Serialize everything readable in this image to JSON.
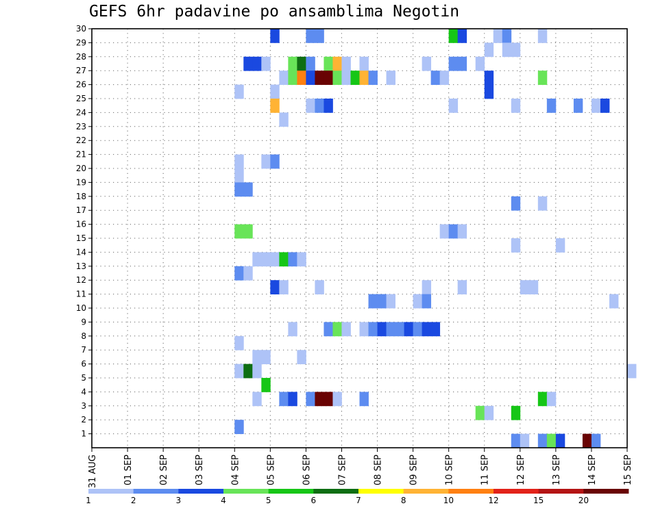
{
  "chart_data": {
    "type": "heatmap",
    "title": "GEFS 6hr padavine po ansamblima Negotin",
    "xlabel": "",
    "ylabel": "",
    "x_ticks": [
      "31 AUG",
      "01 SEP",
      "02 SEP",
      "03 SEP",
      "04 SEP",
      "05 SEP",
      "06 SEP",
      "07 SEP",
      "08 SEP",
      "09 SEP",
      "10 SEP",
      "11 SEP",
      "12 SEP",
      "13 SEP",
      "14 SEP",
      "15 SEP"
    ],
    "y_ticks": [
      1,
      2,
      3,
      4,
      5,
      6,
      7,
      8,
      9,
      10,
      11,
      12,
      13,
      14,
      15,
      16,
      17,
      18,
      19,
      20,
      21,
      22,
      23,
      24,
      25,
      26,
      27,
      28,
      29,
      30
    ],
    "xlim_days": [
      0,
      15
    ],
    "ylim": [
      0,
      30
    ],
    "steps_per_day": 4,
    "grid": true,
    "legend": {
      "position": "bottom",
      "ticks": [
        "1",
        "2",
        "3",
        "4",
        "5",
        "6",
        "7",
        "8",
        "10",
        "12",
        "15",
        "20"
      ],
      "colors": [
        "#aec3f7",
        "#5d8cf0",
        "#1a49e0",
        "#68e458",
        "#16c616",
        "#0e6e13",
        "#ffff00",
        "#ffb334",
        "#ff8011",
        "#e22219",
        "#b41414",
        "#690303"
      ]
    },
    "cells": [
      {
        "m": 30,
        "t": 20,
        "c": 2
      },
      {
        "m": 30,
        "t": 24,
        "c": 1
      },
      {
        "m": 30,
        "t": 25,
        "c": 1
      },
      {
        "m": 30,
        "t": 40,
        "c": 4
      },
      {
        "m": 30,
        "t": 41,
        "c": 2
      },
      {
        "m": 30,
        "t": 45,
        "c": 0
      },
      {
        "m": 30,
        "t": 46,
        "c": 1
      },
      {
        "m": 30,
        "t": 50,
        "c": 0
      },
      {
        "m": 29,
        "t": 44,
        "c": 0
      },
      {
        "m": 29,
        "t": 46,
        "c": 0
      },
      {
        "m": 29,
        "t": 47,
        "c": 0
      },
      {
        "m": 28,
        "t": 17,
        "c": 2
      },
      {
        "m": 28,
        "t": 18,
        "c": 2
      },
      {
        "m": 28,
        "t": 19,
        "c": 0
      },
      {
        "m": 28,
        "t": 22,
        "c": 3
      },
      {
        "m": 28,
        "t": 23,
        "c": 5
      },
      {
        "m": 28,
        "t": 24,
        "c": 1
      },
      {
        "m": 28,
        "t": 26,
        "c": 3
      },
      {
        "m": 28,
        "t": 27,
        "c": 7
      },
      {
        "m": 28,
        "t": 28,
        "c": 0
      },
      {
        "m": 28,
        "t": 30,
        "c": 0
      },
      {
        "m": 28,
        "t": 37,
        "c": 0
      },
      {
        "m": 28,
        "t": 40,
        "c": 1
      },
      {
        "m": 28,
        "t": 41,
        "c": 1
      },
      {
        "m": 28,
        "t": 43,
        "c": 0
      },
      {
        "m": 27,
        "t": 21,
        "c": 0
      },
      {
        "m": 27,
        "t": 22,
        "c": 3
      },
      {
        "m": 27,
        "t": 23,
        "c": 8
      },
      {
        "m": 27,
        "t": 24,
        "c": 2
      },
      {
        "m": 27,
        "t": 25,
        "c": 11
      },
      {
        "m": 27,
        "t": 26,
        "c": 11
      },
      {
        "m": 27,
        "t": 27,
        "c": 3
      },
      {
        "m": 27,
        "t": 28,
        "c": 0
      },
      {
        "m": 27,
        "t": 29,
        "c": 4
      },
      {
        "m": 27,
        "t": 30,
        "c": 7
      },
      {
        "m": 27,
        "t": 31,
        "c": 1
      },
      {
        "m": 27,
        "t": 33,
        "c": 0
      },
      {
        "m": 27,
        "t": 38,
        "c": 1
      },
      {
        "m": 27,
        "t": 39,
        "c": 0
      },
      {
        "m": 27,
        "t": 44,
        "c": 2
      },
      {
        "m": 27,
        "t": 50,
        "c": 3
      },
      {
        "m": 26,
        "t": 16,
        "c": 0
      },
      {
        "m": 26,
        "t": 20,
        "c": 0
      },
      {
        "m": 26,
        "t": 44,
        "c": 2
      },
      {
        "m": 25,
        "t": 20,
        "c": 7
      },
      {
        "m": 25,
        "t": 24,
        "c": 0
      },
      {
        "m": 25,
        "t": 25,
        "c": 1
      },
      {
        "m": 25,
        "t": 26,
        "c": 2
      },
      {
        "m": 25,
        "t": 40,
        "c": 0
      },
      {
        "m": 25,
        "t": 47,
        "c": 0
      },
      {
        "m": 25,
        "t": 51,
        "c": 1
      },
      {
        "m": 25,
        "t": 54,
        "c": 1
      },
      {
        "m": 25,
        "t": 56,
        "c": 0
      },
      {
        "m": 25,
        "t": 57,
        "c": 2
      },
      {
        "m": 24,
        "t": 21,
        "c": 0
      },
      {
        "m": 21,
        "t": 16,
        "c": 0
      },
      {
        "m": 21,
        "t": 19,
        "c": 0
      },
      {
        "m": 21,
        "t": 20,
        "c": 1
      },
      {
        "m": 20,
        "t": 16,
        "c": 0
      },
      {
        "m": 19,
        "t": 16,
        "c": 1
      },
      {
        "m": 19,
        "t": 17,
        "c": 1
      },
      {
        "m": 18,
        "t": 47,
        "c": 1
      },
      {
        "m": 18,
        "t": 50,
        "c": 0
      },
      {
        "m": 16,
        "t": 16,
        "c": 3
      },
      {
        "m": 16,
        "t": 17,
        "c": 3
      },
      {
        "m": 16,
        "t": 39,
        "c": 0
      },
      {
        "m": 16,
        "t": 40,
        "c": 1
      },
      {
        "m": 16,
        "t": 41,
        "c": 0
      },
      {
        "m": 15,
        "t": 47,
        "c": 0
      },
      {
        "m": 15,
        "t": 52,
        "c": 0
      },
      {
        "m": 14,
        "t": 18,
        "c": 0
      },
      {
        "m": 14,
        "t": 19,
        "c": 0
      },
      {
        "m": 14,
        "t": 20,
        "c": 0
      },
      {
        "m": 14,
        "t": 21,
        "c": 4
      },
      {
        "m": 14,
        "t": 22,
        "c": 1
      },
      {
        "m": 14,
        "t": 23,
        "c": 0
      },
      {
        "m": 13,
        "t": 16,
        "c": 1
      },
      {
        "m": 13,
        "t": 17,
        "c": 0
      },
      {
        "m": 12,
        "t": 20,
        "c": 2
      },
      {
        "m": 12,
        "t": 21,
        "c": 0
      },
      {
        "m": 12,
        "t": 25,
        "c": 0
      },
      {
        "m": 12,
        "t": 37,
        "c": 0
      },
      {
        "m": 12,
        "t": 41,
        "c": 0
      },
      {
        "m": 12,
        "t": 48,
        "c": 0
      },
      {
        "m": 12,
        "t": 49,
        "c": 0
      },
      {
        "m": 11,
        "t": 31,
        "c": 1
      },
      {
        "m": 11,
        "t": 32,
        "c": 1
      },
      {
        "m": 11,
        "t": 33,
        "c": 0
      },
      {
        "m": 11,
        "t": 36,
        "c": 0
      },
      {
        "m": 11,
        "t": 37,
        "c": 1
      },
      {
        "m": 11,
        "t": 58,
        "c": 0
      },
      {
        "m": 9,
        "t": 22,
        "c": 0
      },
      {
        "m": 9,
        "t": 26,
        "c": 1
      },
      {
        "m": 9,
        "t": 27,
        "c": 3
      },
      {
        "m": 9,
        "t": 28,
        "c": 0
      },
      {
        "m": 9,
        "t": 30,
        "c": 0
      },
      {
        "m": 9,
        "t": 31,
        "c": 1
      },
      {
        "m": 9,
        "t": 32,
        "c": 2
      },
      {
        "m": 9,
        "t": 33,
        "c": 1
      },
      {
        "m": 9,
        "t": 34,
        "c": 1
      },
      {
        "m": 9,
        "t": 35,
        "c": 2
      },
      {
        "m": 9,
        "t": 36,
        "c": 1
      },
      {
        "m": 9,
        "t": 37,
        "c": 2
      },
      {
        "m": 9,
        "t": 38,
        "c": 2
      },
      {
        "m": 8,
        "t": 16,
        "c": 0
      },
      {
        "m": 7,
        "t": 18,
        "c": 0
      },
      {
        "m": 7,
        "t": 19,
        "c": 0
      },
      {
        "m": 7,
        "t": 23,
        "c": 0
      },
      {
        "m": 6,
        "t": 16,
        "c": 0
      },
      {
        "m": 6,
        "t": 17,
        "c": 5
      },
      {
        "m": 6,
        "t": 18,
        "c": 0
      },
      {
        "m": 6,
        "t": 60,
        "c": 0
      },
      {
        "m": 5,
        "t": 19,
        "c": 4
      },
      {
        "m": 4,
        "t": 18,
        "c": 0
      },
      {
        "m": 4,
        "t": 21,
        "c": 1
      },
      {
        "m": 4,
        "t": 22,
        "c": 2
      },
      {
        "m": 4,
        "t": 24,
        "c": 1
      },
      {
        "m": 4,
        "t": 25,
        "c": 11
      },
      {
        "m": 4,
        "t": 26,
        "c": 11
      },
      {
        "m": 4,
        "t": 27,
        "c": 0
      },
      {
        "m": 4,
        "t": 30,
        "c": 1
      },
      {
        "m": 4,
        "t": 50,
        "c": 4
      },
      {
        "m": 4,
        "t": 51,
        "c": 0
      },
      {
        "m": 3,
        "t": 43,
        "c": 3
      },
      {
        "m": 3,
        "t": 44,
        "c": 0
      },
      {
        "m": 3,
        "t": 47,
        "c": 4
      },
      {
        "m": 2,
        "t": 16,
        "c": 1
      },
      {
        "m": 1,
        "t": 47,
        "c": 1
      },
      {
        "m": 1,
        "t": 48,
        "c": 0
      },
      {
        "m": 1,
        "t": 50,
        "c": 1
      },
      {
        "m": 1,
        "t": 51,
        "c": 3
      },
      {
        "m": 1,
        "t": 52,
        "c": 2
      },
      {
        "m": 1,
        "t": 55,
        "c": 11
      },
      {
        "m": 1,
        "t": 56,
        "c": 1
      }
    ]
  }
}
